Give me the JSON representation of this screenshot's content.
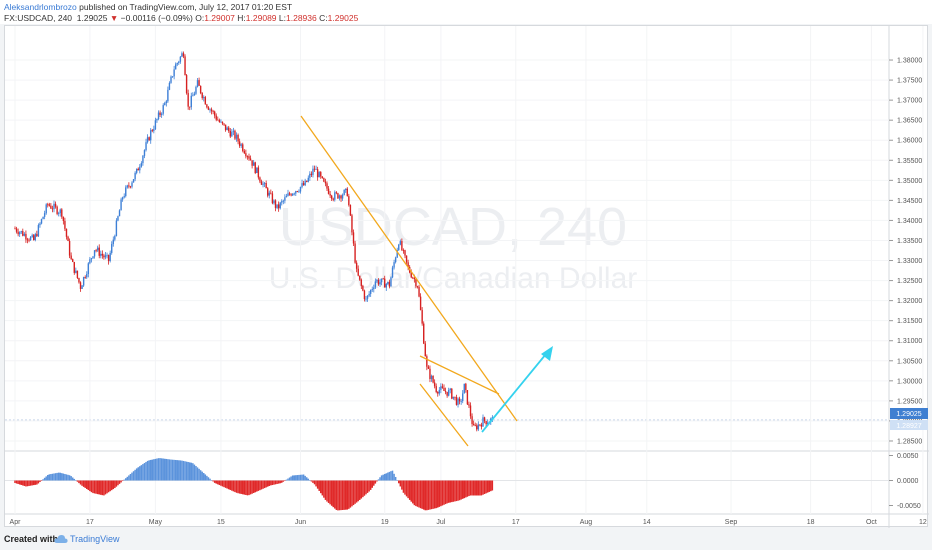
{
  "header": {
    "author": "Aleksandrlombrozo",
    "published": "published on TradingView.com, July 12, 2017 01:20 EST",
    "symbol": "FX:USDCAD, 240",
    "price": "1.29025",
    "change_arrow": "▼",
    "change": "−0.00116 (−0.09%)",
    "o_label": "O:",
    "o_value": "1.29007",
    "h_label": "H:",
    "h_value": "1.29089",
    "l_label": "L:",
    "l_value": "1.28936",
    "c_label": "C:",
    "c_value": "1.29025"
  },
  "watermark": {
    "symbol": "USDCAD, 240",
    "description": "U.S. Dollar/Canadian Dollar"
  },
  "footer": {
    "created_with": "Created with",
    "brand": "TradingView"
  },
  "colors": {
    "up": "#3d7fd6",
    "down": "#d62020",
    "trendline": "#f2a81d",
    "arrow": "#35d2ee",
    "price_tag": "#3f7fd1"
  },
  "chart_data": [
    {
      "type": "candlestick",
      "title": "USDCAD, 240",
      "subtitle": "U.S. Dollar/Canadian Dollar",
      "ylim": [
        1.2825,
        1.3835
      ],
      "y_ticks": [
        "1.38000",
        "1.37500",
        "1.37000",
        "1.36500",
        "1.36000",
        "1.35500",
        "1.35000",
        "1.34500",
        "1.34000",
        "1.33500",
        "1.33000",
        "1.32500",
        "1.32000",
        "1.31500",
        "1.31000",
        "1.30500",
        "1.30000",
        "1.29500",
        "1.29000",
        "1.28500"
      ],
      "x_ticks": [
        "Apr",
        "17",
        "May",
        "15",
        "Jun",
        "19",
        "Jul",
        "17",
        "Aug",
        "14",
        "Sep",
        "18",
        "Oct",
        "12"
      ],
      "last_price": "1.29025",
      "last_price_secondary": "1.28927",
      "series": [
        {
          "date": "Apr 1",
          "close": 1.338
        },
        {
          "date": "Apr 5",
          "close": 1.335
        },
        {
          "date": "Apr 8",
          "close": 1.344
        },
        {
          "date": "Apr 11",
          "close": 1.342
        },
        {
          "date": "Apr 13",
          "close": 1.33
        },
        {
          "date": "Apr 15",
          "close": 1.3235
        },
        {
          "date": "Apr 18",
          "close": 1.333
        },
        {
          "date": "Apr 21",
          "close": 1.33
        },
        {
          "date": "Apr 24",
          "close": 1.346
        },
        {
          "date": "Apr 27",
          "close": 1.352
        },
        {
          "date": "Apr 30",
          "close": 1.362
        },
        {
          "date": "May 3",
          "close": 1.369
        },
        {
          "date": "May 5",
          "close": 1.378
        },
        {
          "date": "May 7",
          "close": 1.382
        },
        {
          "date": "May 8",
          "close": 1.368
        },
        {
          "date": "May 10",
          "close": 1.374
        },
        {
          "date": "May 12",
          "close": 1.369
        },
        {
          "date": "May 15",
          "close": 1.364
        },
        {
          "date": "May 18",
          "close": 1.361
        },
        {
          "date": "May 21",
          "close": 1.356
        },
        {
          "date": "May 24",
          "close": 1.349
        },
        {
          "date": "May 27",
          "close": 1.343
        },
        {
          "date": "May 30",
          "close": 1.347
        },
        {
          "date": "Jun 2",
          "close": 1.349
        },
        {
          "date": "Jun 4",
          "close": 1.353
        },
        {
          "date": "Jun 6",
          "close": 1.349
        },
        {
          "date": "Jun 8",
          "close": 1.346
        },
        {
          "date": "Jun 11",
          "close": 1.347
        },
        {
          "date": "Jun 13",
          "close": 1.327
        },
        {
          "date": "Jun 15",
          "close": 1.32
        },
        {
          "date": "Jun 17",
          "close": 1.325
        },
        {
          "date": "Jun 20",
          "close": 1.324
        },
        {
          "date": "Jun 22",
          "close": 1.335
        },
        {
          "date": "Jun 24",
          "close": 1.328
        },
        {
          "date": "Jun 26",
          "close": 1.324
        },
        {
          "date": "Jun 27",
          "close": 1.314
        },
        {
          "date": "Jun 28",
          "close": 1.303
        },
        {
          "date": "Jun 30",
          "close": 1.298
        },
        {
          "date": "Jul 3",
          "close": 1.297
        },
        {
          "date": "Jul 5",
          "close": 1.294
        },
        {
          "date": "Jul 6",
          "close": 1.2985
        },
        {
          "date": "Jul 8",
          "close": 1.288
        },
        {
          "date": "Jul 10",
          "close": 1.29
        },
        {
          "date": "Jul 12",
          "close": 1.29025
        }
      ]
    },
    {
      "type": "bar",
      "title": "",
      "ylim": [
        -0.0065,
        0.0055
      ],
      "y_ticks": [
        "0.0050",
        "0.0000",
        "-0.0050"
      ],
      "values": [
        -0.0005,
        -0.0012,
        -0.0008,
        0.0012,
        0.0016,
        0.001,
        -0.001,
        -0.0025,
        -0.003,
        -0.0015,
        0.0005,
        0.0025,
        0.004,
        0.0045,
        0.0042,
        0.004,
        0.0035,
        0.0015,
        -0.0005,
        -0.0015,
        -0.0025,
        -0.003,
        -0.002,
        -0.001,
        -0.0005,
        0.001,
        0.0012,
        -0.0008,
        -0.004,
        -0.006,
        -0.0058,
        -0.004,
        -0.002,
        0.001,
        0.002,
        -0.0025,
        -0.005,
        -0.006,
        -0.0055,
        -0.0045,
        -0.004,
        -0.003,
        -0.003,
        -0.002
      ]
    }
  ]
}
